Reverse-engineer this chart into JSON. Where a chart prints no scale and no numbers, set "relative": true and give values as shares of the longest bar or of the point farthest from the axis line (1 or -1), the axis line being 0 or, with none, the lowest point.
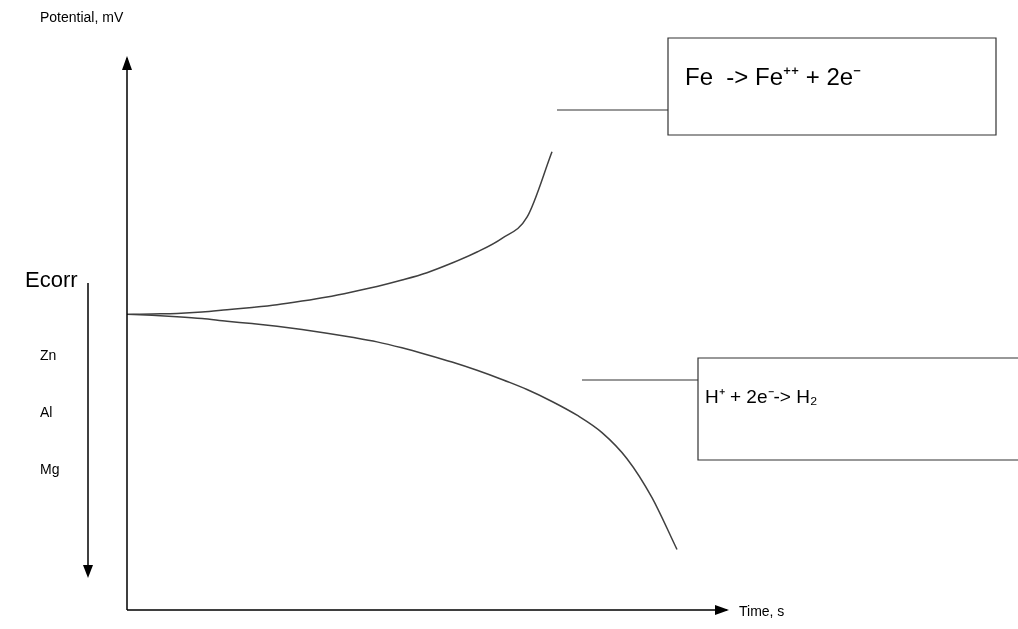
{
  "chart_data": {
    "type": "line",
    "relative": true,
    "xlabel": "Time, s",
    "categories": [
      null,
      null,
      null,
      null,
      null,
      null,
      null,
      null,
      null,
      null,
      null,
      null,
      null,
      null,
      null,
      null,
      null,
      null,
      null,
      null,
      null,
      null,
      null,
      null,
      null
    ],
    "series": [
      {
        "name": "Fe  -> Fe⁺⁺ + 2e⁻",
        "color": "#404040",
        "values": [
          0.645,
          0.646,
          0.647,
          0.65,
          0.655,
          0.66,
          0.666,
          0.674,
          0.683,
          0.694,
          0.706,
          0.72,
          0.736,
          0.757,
          0.781,
          0.811,
          0.857,
          1,
          null,
          null,
          null,
          null,
          null,
          null,
          null
        ]
      },
      {
        "name": "H⁺ + 2e⁻-> H₂",
        "color": "#404040",
        "values": [
          0.645,
          0.643,
          0.64,
          0.636,
          0.63,
          0.625,
          0.619,
          0.612,
          0.604,
          0.595,
          0.585,
          0.572,
          0.557,
          0.541,
          0.523,
          0.503,
          0.481,
          0.455,
          0.425,
          0.387,
          0.33,
          0.245,
          0.132,
          null,
          null
        ]
      }
    ],
    "annotations": [
      "Potential, mV",
      "Ecorr",
      "Zn",
      "Al",
      "Mg"
    ],
    "legend": false,
    "marker": "none",
    "line_style": "solid"
  }
}
